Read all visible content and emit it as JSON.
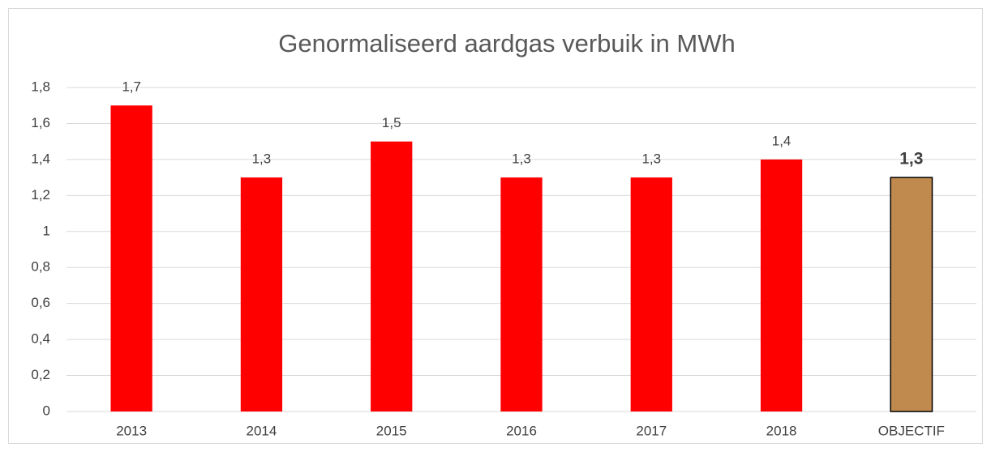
{
  "chart_data": {
    "type": "bar",
    "title": "Genormaliseerd aardgas verbuik in MWh",
    "categories": [
      "2013",
      "2014",
      "2015",
      "2016",
      "2017",
      "2018",
      "OBJECTIF"
    ],
    "values": [
      1.7,
      1.3,
      1.5,
      1.3,
      1.3,
      1.4,
      1.3
    ],
    "value_labels": [
      "1,7",
      "1,3",
      "1,5",
      "1,3",
      "1,3",
      "1,4",
      "1,3"
    ],
    "colors": [
      "#ff0000",
      "#ff0000",
      "#ff0000",
      "#ff0000",
      "#ff0000",
      "#ff0000",
      "#c08a4e"
    ],
    "label_bold": [
      false,
      false,
      false,
      false,
      false,
      false,
      true
    ],
    "ylim": [
      0,
      1.8
    ],
    "yticks": [
      0,
      {
        "value": 0.2,
        "label": "0,2"
      },
      {
        "value": 0.4,
        "label": "0,4"
      },
      {
        "value": 0.6,
        "label": "0,6"
      },
      {
        "value": 0.8,
        "label": "0,8"
      },
      1,
      {
        "value": 1.2,
        "label": "1,2"
      },
      {
        "value": 1.4,
        "label": "1,4"
      },
      {
        "value": 1.6,
        "label": "1,6"
      },
      {
        "value": 1.8,
        "label": "1,8"
      }
    ],
    "grid": true
  }
}
